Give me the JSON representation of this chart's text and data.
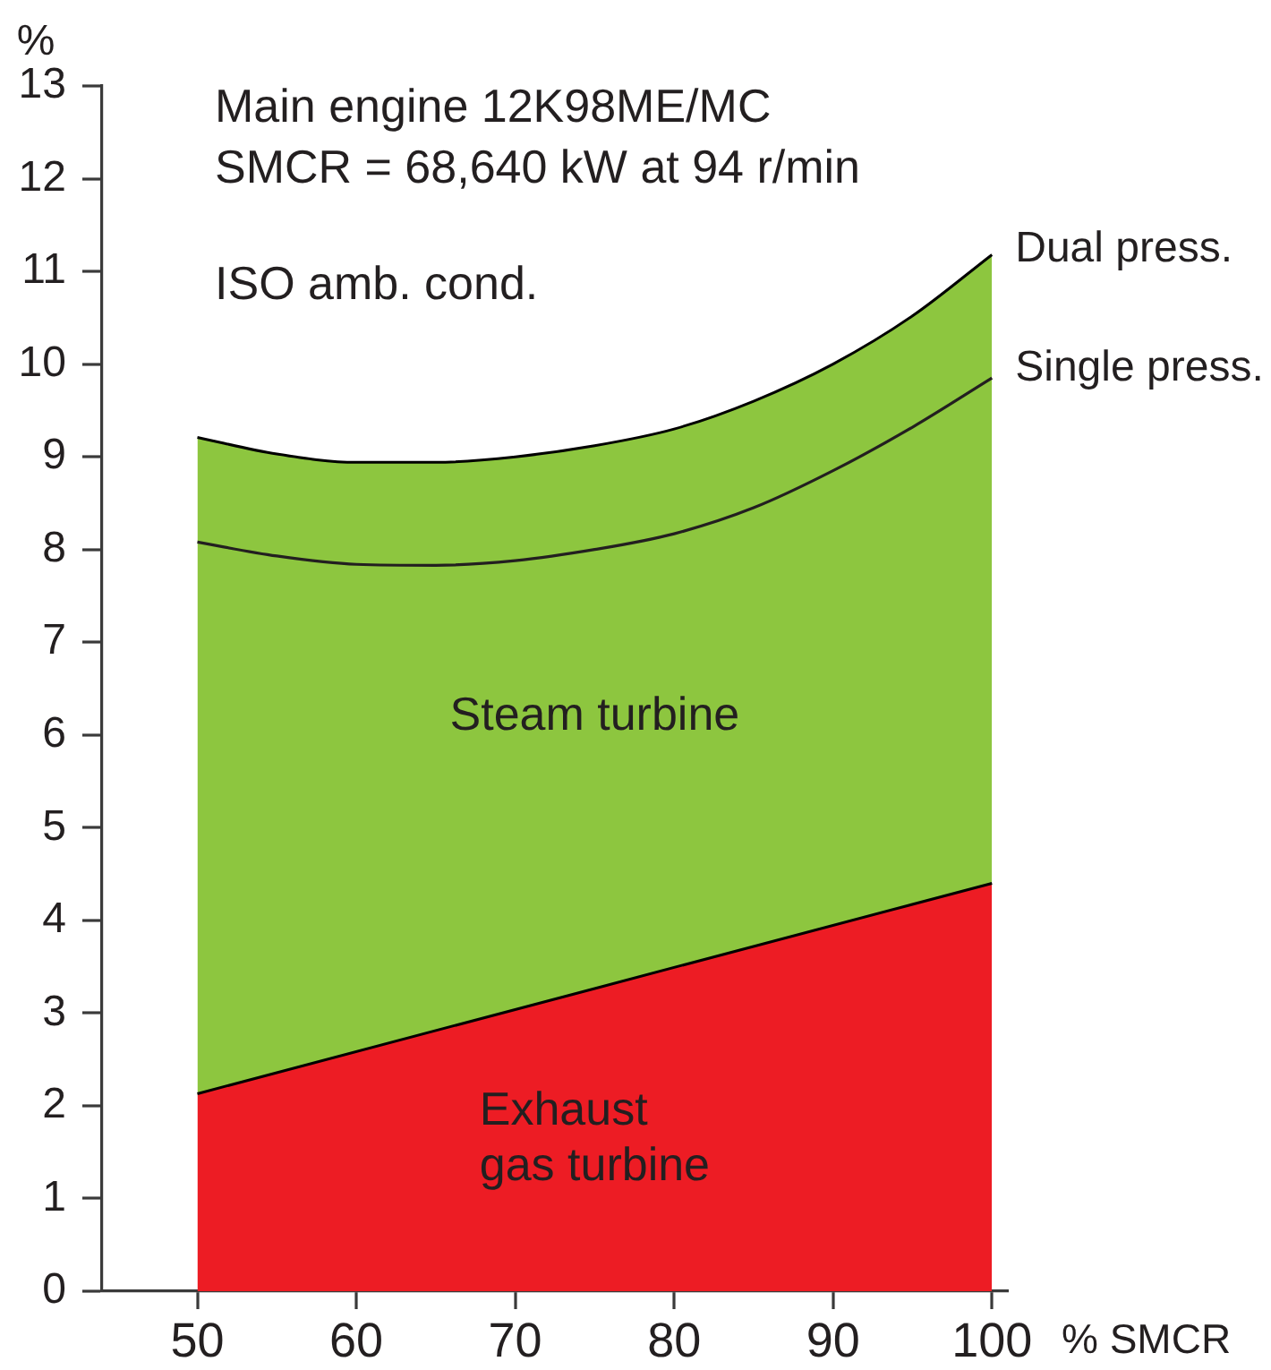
{
  "chart_data": {
    "type": "area",
    "title": "Main engine 12K98ME/MC",
    "subtitle": "SMCR = 68,640 kW at 94 r/min",
    "annotations": [
      "ISO amb. cond.",
      {
        "text": "Dual press.",
        "x": 100,
        "y": 11.18
      }
    ],
    "xlabel": "% SMCR",
    "ylabel": "%",
    "x": [
      50,
      55,
      60,
      65,
      70,
      75,
      80,
      85,
      90,
      95,
      100
    ],
    "series": [
      {
        "name": "Exhaust gas turbine",
        "color": "#ed1c24",
        "x": [
          50,
          100
        ],
        "values": [
          2.13,
          4.4
        ]
      },
      {
        "name": "Steam turbine",
        "color": "#8dc63f",
        "values": [
          9.21,
          9.03,
          8.94,
          8.94,
          9.0,
          9.12,
          9.3,
          9.6,
          10.0,
          10.52,
          11.18
        ]
      },
      {
        "name": "Single press.",
        "type": "line",
        "color": "#231f20",
        "values": [
          8.08,
          7.93,
          7.84,
          7.83,
          7.88,
          8.0,
          8.17,
          8.45,
          8.85,
          9.32,
          9.85
        ]
      }
    ],
    "xlim": [
      44,
      101
    ],
    "xticks": [
      50,
      60,
      70,
      80,
      90,
      100
    ],
    "ylim": [
      0,
      13
    ],
    "yticks": [
      0,
      1,
      2,
      3,
      4,
      5,
      6,
      7,
      8,
      9,
      10,
      11,
      12,
      13
    ],
    "grid": false,
    "legend": false,
    "marker": "none",
    "line_style": "solid"
  }
}
